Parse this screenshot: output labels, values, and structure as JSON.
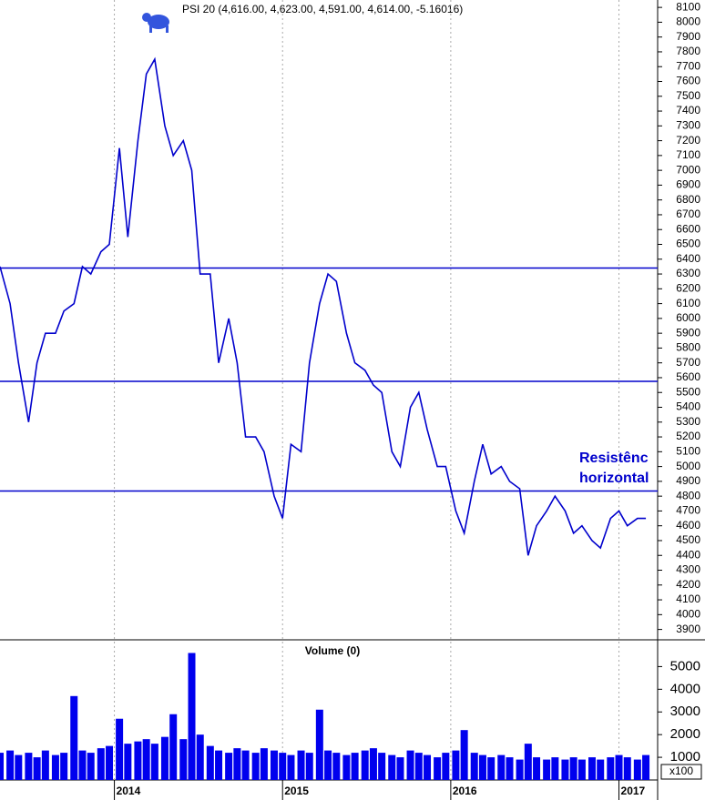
{
  "chart_data": [
    {
      "type": "line",
      "title": "PSI 20 (4,616.00, 4,623.00, 4,591.00, 4,614.00, -5.16016)",
      "annotations": [
        "Resistênc",
        "horizontal"
      ],
      "color": "#0000cc",
      "hlines": [
        6340,
        5575,
        4835
      ],
      "hline_color": "#0000cc",
      "xlim": [
        2013.32,
        2017.23
      ],
      "ylim": [
        3830,
        8150
      ],
      "yticks": [
        3900,
        4000,
        4100,
        4200,
        4300,
        4400,
        4500,
        4600,
        4700,
        4800,
        4900,
        5000,
        5100,
        5200,
        5300,
        5400,
        5500,
        5600,
        5700,
        5800,
        5900,
        6000,
        6100,
        6200,
        6300,
        6400,
        6500,
        6600,
        6700,
        6800,
        6900,
        7000,
        7100,
        7200,
        7300,
        7400,
        7500,
        7600,
        7700,
        7800,
        7900,
        8000,
        8100
      ],
      "x": [
        2013.32,
        2013.38,
        2013.43,
        2013.49,
        2013.54,
        2013.59,
        2013.65,
        2013.7,
        2013.76,
        2013.81,
        2013.86,
        2013.92,
        2013.97,
        2014.03,
        2014.08,
        2014.14,
        2014.19,
        2014.24,
        2014.3,
        2014.35,
        2014.41,
        2014.46,
        2014.51,
        2014.57,
        2014.62,
        2014.68,
        2014.73,
        2014.78,
        2014.84,
        2014.89,
        2014.95,
        2015.0,
        2015.05,
        2015.11,
        2015.16,
        2015.22,
        2015.27,
        2015.32,
        2015.38,
        2015.43,
        2015.49,
        2015.54,
        2015.59,
        2015.65,
        2015.7,
        2015.76,
        2015.81,
        2015.86,
        2015.92,
        2015.97,
        2016.03,
        2016.08,
        2016.14,
        2016.19,
        2016.24,
        2016.3,
        2016.35,
        2016.41,
        2016.46,
        2016.51,
        2016.57,
        2016.62,
        2016.68,
        2016.73,
        2016.78,
        2016.84,
        2016.89,
        2016.95,
        2017.0,
        2017.05,
        2017.11,
        2017.16
      ],
      "values": [
        6350,
        6100,
        5700,
        5300,
        5700,
        5900,
        5900,
        6050,
        6100,
        6350,
        6300,
        6450,
        6500,
        7150,
        6550,
        7200,
        7650,
        7750,
        7300,
        7100,
        7200,
        7000,
        6300,
        6300,
        5700,
        6000,
        5700,
        5200,
        5200,
        5100,
        4800,
        4650,
        5150,
        5100,
        5700,
        6100,
        6300,
        6250,
        5900,
        5700,
        5650,
        5550,
        5500,
        5100,
        5000,
        5400,
        5500,
        5250,
        5000,
        5000,
        4700,
        4550,
        4900,
        5150,
        4950,
        5000,
        4900,
        4850,
        4400,
        4600,
        4700,
        4800,
        4700,
        4550,
        4600,
        4500,
        4450,
        4650,
        4700,
        4600,
        4650,
        4650
      ]
    },
    {
      "type": "bar",
      "title": "Volume (0)",
      "unit": "x100",
      "color": "#0000ee",
      "xlim": [
        2013.32,
        2017.23
      ],
      "xticks": [
        2014,
        2015,
        2016,
        2017
      ],
      "ylim": [
        0,
        6100
      ],
      "yticks": [
        1000,
        2000,
        3000,
        4000,
        5000
      ],
      "x": [
        2013.32,
        2013.38,
        2013.43,
        2013.49,
        2013.54,
        2013.59,
        2013.65,
        2013.7,
        2013.76,
        2013.81,
        2013.86,
        2013.92,
        2013.97,
        2014.03,
        2014.08,
        2014.14,
        2014.19,
        2014.24,
        2014.3,
        2014.35,
        2014.41,
        2014.46,
        2014.51,
        2014.57,
        2014.62,
        2014.68,
        2014.73,
        2014.78,
        2014.84,
        2014.89,
        2014.95,
        2015.0,
        2015.05,
        2015.11,
        2015.16,
        2015.22,
        2015.27,
        2015.32,
        2015.38,
        2015.43,
        2015.49,
        2015.54,
        2015.59,
        2015.65,
        2015.7,
        2015.76,
        2015.81,
        2015.86,
        2015.92,
        2015.97,
        2016.03,
        2016.08,
        2016.14,
        2016.19,
        2016.24,
        2016.3,
        2016.35,
        2016.41,
        2016.46,
        2016.51,
        2016.57,
        2016.62,
        2016.68,
        2016.73,
        2016.78,
        2016.84,
        2016.89,
        2016.95,
        2017.0,
        2017.05,
        2017.11,
        2017.16
      ],
      "values": [
        1200,
        1300,
        1100,
        1200,
        1000,
        1300,
        1100,
        1200,
        3700,
        1300,
        1200,
        1400,
        1500,
        2700,
        1600,
        1700,
        1800,
        1600,
        1900,
        2900,
        1800,
        5600,
        2000,
        1500,
        1300,
        1200,
        1400,
        1300,
        1200,
        1400,
        1300,
        1200,
        1100,
        1300,
        1200,
        3100,
        1300,
        1200,
        1100,
        1200,
        1300,
        1400,
        1200,
        1100,
        1000,
        1300,
        1200,
        1100,
        1000,
        1200,
        1300,
        2200,
        1200,
        1100,
        1000,
        1100,
        1000,
        900,
        1600,
        1000,
        900,
        1000,
        900,
        1000,
        900,
        1000,
        900,
        1000,
        1100,
        1000,
        900,
        1100
      ]
    }
  ]
}
